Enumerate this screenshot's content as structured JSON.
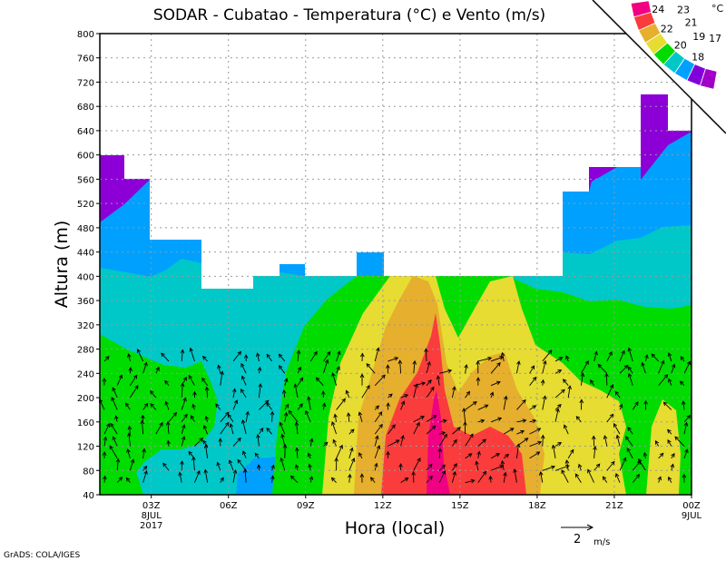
{
  "chart_data": {
    "type": "heatmap",
    "title": "SODAR - Cubatao - Temperatura (°C) e Vento (m/s)",
    "xlabel": "Hora (local)",
    "ylabel": "Altura (m)",
    "ylim": [
      40,
      800
    ],
    "y_ticks": [
      40,
      80,
      120,
      160,
      200,
      240,
      280,
      320,
      360,
      400,
      440,
      480,
      520,
      560,
      600,
      640,
      680,
      720,
      760,
      800
    ],
    "x_range_hours": [
      1,
      24
    ],
    "x_ticks": [
      {
        "hour": 3,
        "label": "03Z",
        "sub1": "8JUL",
        "sub2": "2017"
      },
      {
        "hour": 6,
        "label": "06Z"
      },
      {
        "hour": 9,
        "label": "09Z"
      },
      {
        "hour": 12,
        "label": "12Z"
      },
      {
        "hour": 15,
        "label": "15Z"
      },
      {
        "hour": 18,
        "label": "18Z"
      },
      {
        "hour": 21,
        "label": "21Z"
      },
      {
        "hour": 24,
        "label": "00Z",
        "sub1": "9JUL"
      }
    ],
    "grid": true,
    "colorbar": {
      "unit": "°C",
      "levels": [
        "24",
        "23",
        "22",
        "21",
        "20",
        "19",
        "18",
        "17"
      ],
      "colors": [
        "#f00082",
        "#fa3c3c",
        "#e6af2d",
        "#e6dc32",
        "#00dc00",
        "#00c8c8",
        "#00a0ff",
        "#8200dc",
        "#a000c8"
      ]
    },
    "vector_reference": {
      "value": "2",
      "unit": "m/s"
    },
    "data_top_m": [
      [
        1,
        600
      ],
      [
        2,
        560
      ],
      [
        3,
        460
      ],
      [
        5,
        380
      ],
      [
        7,
        400
      ],
      [
        8,
        420
      ],
      [
        9,
        400
      ],
      [
        11,
        440
      ],
      [
        12,
        400
      ],
      [
        19,
        540
      ],
      [
        20,
        580
      ],
      [
        22,
        700
      ],
      [
        23,
        640
      ],
      [
        24,
        640
      ]
    ]
  },
  "footer": "GrADS: COLA/IGES"
}
